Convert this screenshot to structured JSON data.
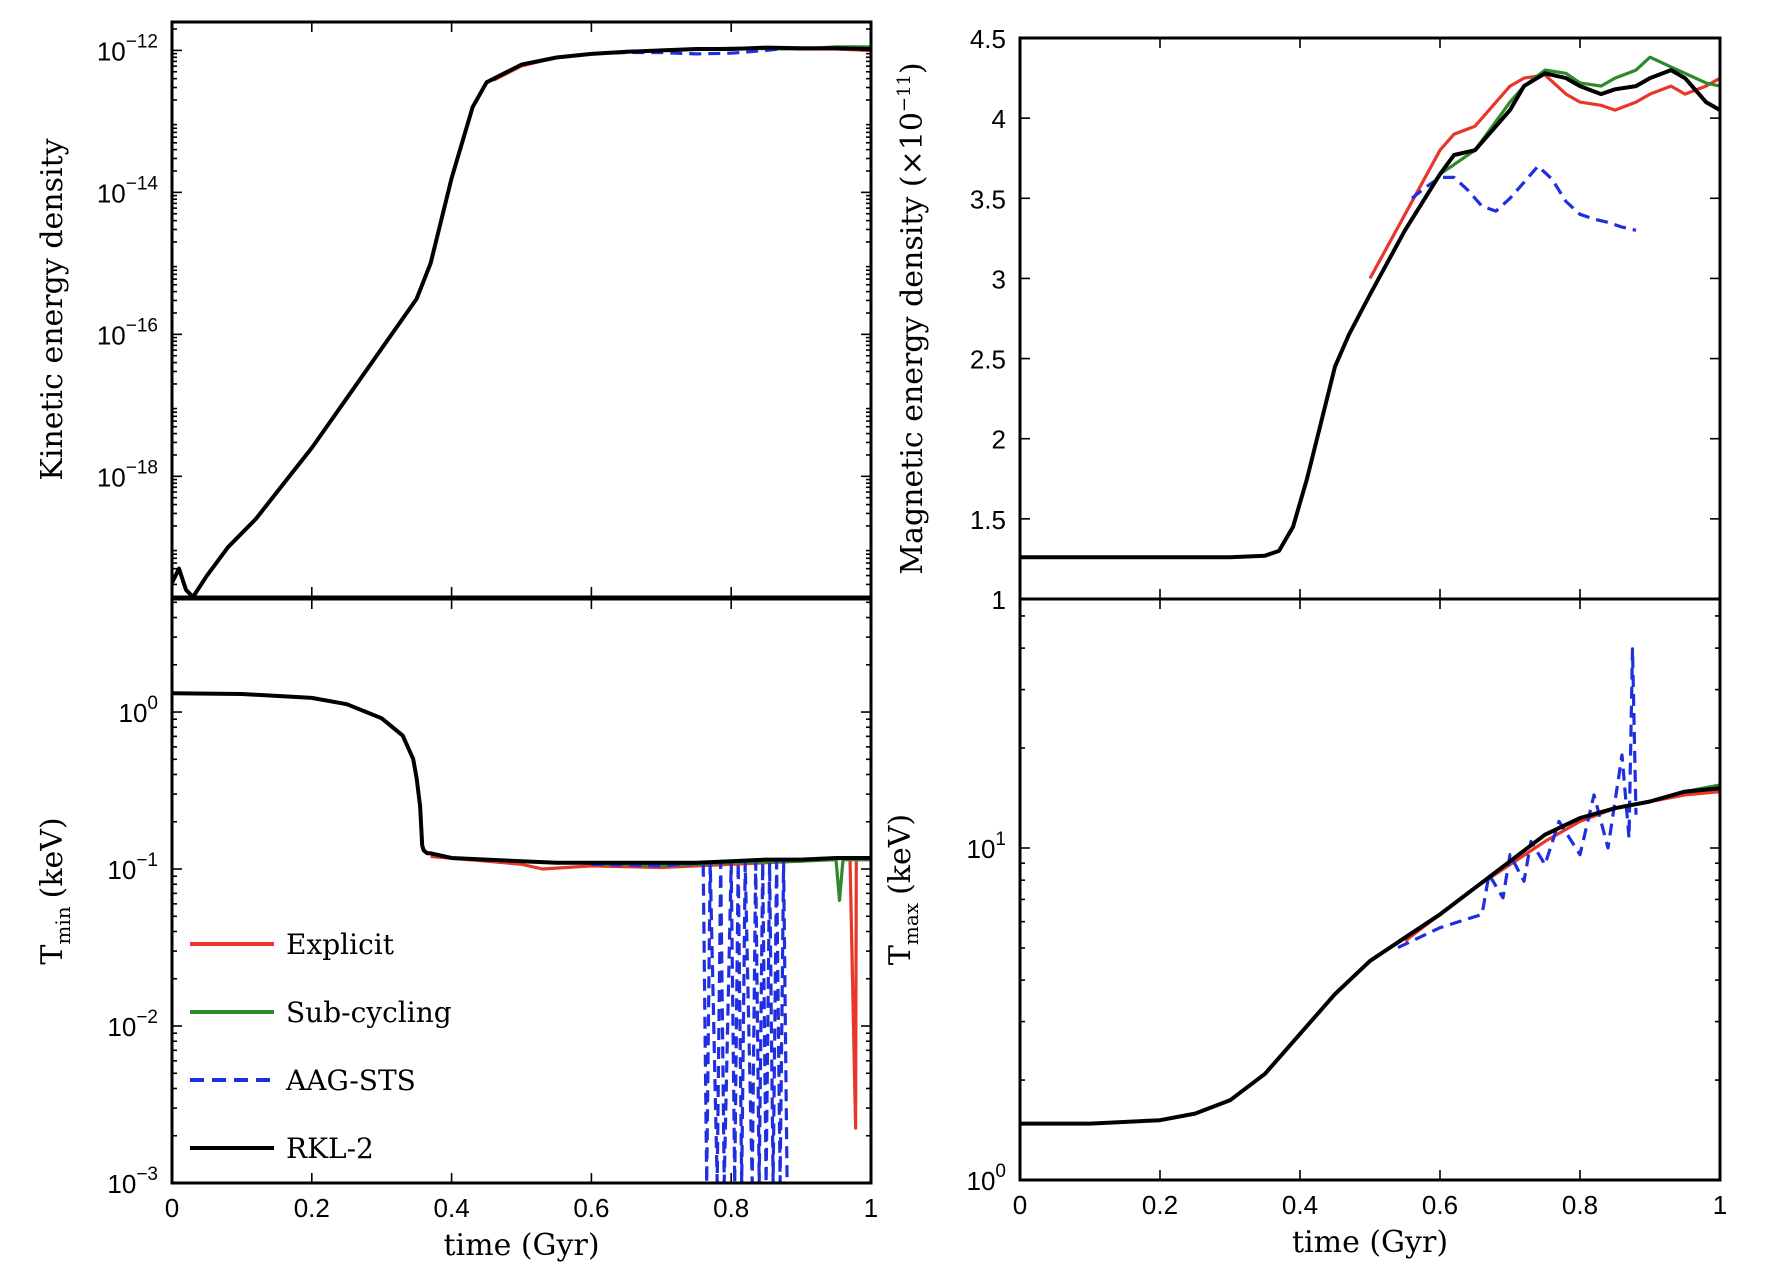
{
  "chart_data": [
    {
      "id": "ke",
      "type": "line",
      "ylabel": "Kinetic energy density",
      "xlabel": "",
      "xlim": [
        0,
        1
      ],
      "ylim_log10": [
        -19.7,
        -11.6
      ],
      "yscale": "log",
      "xticks": [],
      "yticks": [
        {
          "base": "10",
          "exp": "−12",
          "value": -12
        },
        {
          "base": "10",
          "exp": "−14",
          "value": -14
        },
        {
          "base": "10",
          "exp": "−16",
          "value": -16
        },
        {
          "base": "10",
          "exp": "−18",
          "value": -18
        }
      ],
      "series": [
        {
          "name": "Explicit",
          "color": "#e8362a",
          "dash": false,
          "x": [
            0.46,
            0.5,
            0.55,
            0.6,
            0.65,
            0.7,
            0.75,
            0.8,
            0.85,
            0.9,
            0.95,
            1.0
          ],
          "y": [
            -12.42,
            -12.22,
            -12.1,
            -12.05,
            -12.02,
            -12.0,
            -11.98,
            -11.97,
            -11.97,
            -11.98,
            -11.98,
            -12.0
          ]
        },
        {
          "name": "Sub-cycling",
          "color": "#2d8a2a",
          "dash": false,
          "x": [
            0.6,
            0.7,
            0.8,
            0.9,
            0.95,
            1.0
          ],
          "y": [
            -12.05,
            -12.0,
            -11.97,
            -11.98,
            -11.95,
            -11.95
          ]
        },
        {
          "name": "AAG-STS",
          "color": "#1f2fe0",
          "dash": true,
          "x": [
            0.55,
            0.6,
            0.65,
            0.7,
            0.75,
            0.8,
            0.85,
            0.88
          ],
          "y": [
            -12.1,
            -12.05,
            -12.03,
            -12.03,
            -12.05,
            -12.04,
            -12.0,
            -11.97
          ]
        },
        {
          "name": "RKL-2",
          "color": "#000000",
          "dash": false,
          "x": [
            0.0,
            0.01,
            0.02,
            0.03,
            0.05,
            0.08,
            0.12,
            0.16,
            0.2,
            0.25,
            0.3,
            0.35,
            0.37,
            0.4,
            0.43,
            0.45,
            0.48,
            0.5,
            0.55,
            0.6,
            0.65,
            0.7,
            0.75,
            0.8,
            0.85,
            0.9,
            0.95,
            1.0
          ],
          "y": [
            -19.5,
            -19.3,
            -19.6,
            -19.7,
            -19.4,
            -19.0,
            -18.6,
            -18.1,
            -17.6,
            -16.9,
            -16.2,
            -15.5,
            -15.0,
            -13.8,
            -12.8,
            -12.45,
            -12.3,
            -12.2,
            -12.1,
            -12.05,
            -12.02,
            -12.0,
            -11.98,
            -11.98,
            -11.96,
            -11.97,
            -11.97,
            -11.98
          ]
        }
      ]
    },
    {
      "id": "me",
      "type": "line",
      "ylabel": "Magnetic energy density (×10",
      "ylabel_exp": "−11",
      "ylabel_close": ")",
      "xlabel": "",
      "xlim": [
        0,
        1
      ],
      "ylim": [
        1,
        4.5
      ],
      "yscale": "linear",
      "xticks": [],
      "yticks": [
        {
          "label": "1",
          "value": 1
        },
        {
          "label": "1.5",
          "value": 1.5
        },
        {
          "label": "2",
          "value": 2
        },
        {
          "label": "2.5",
          "value": 2.5
        },
        {
          "label": "3",
          "value": 3
        },
        {
          "label": "3.5",
          "value": 3.5
        },
        {
          "label": "4",
          "value": 4
        },
        {
          "label": "4.5",
          "value": 4.5
        }
      ],
      "series": [
        {
          "name": "Explicit",
          "color": "#e8362a",
          "dash": false,
          "x": [
            0.5,
            0.55,
            0.6,
            0.62,
            0.65,
            0.7,
            0.72,
            0.75,
            0.78,
            0.8,
            0.83,
            0.85,
            0.88,
            0.9,
            0.93,
            0.95,
            0.98,
            1.0
          ],
          "y": [
            3.0,
            3.4,
            3.8,
            3.9,
            3.95,
            4.2,
            4.25,
            4.27,
            4.15,
            4.1,
            4.08,
            4.05,
            4.1,
            4.15,
            4.2,
            4.15,
            4.2,
            4.25
          ]
        },
        {
          "name": "Sub-cycling",
          "color": "#2d8a2a",
          "dash": false,
          "x": [
            0.55,
            0.6,
            0.65,
            0.7,
            0.72,
            0.75,
            0.78,
            0.8,
            0.83,
            0.85,
            0.88,
            0.9,
            0.93,
            0.95,
            0.98,
            1.0
          ],
          "y": [
            3.3,
            3.65,
            3.8,
            4.1,
            4.2,
            4.3,
            4.28,
            4.22,
            4.2,
            4.25,
            4.3,
            4.38,
            4.32,
            4.28,
            4.22,
            4.2
          ]
        },
        {
          "name": "AAG-STS",
          "color": "#1f2fe0",
          "dash": true,
          "x": [
            0.56,
            0.58,
            0.6,
            0.62,
            0.64,
            0.66,
            0.68,
            0.7,
            0.72,
            0.74,
            0.76,
            0.78,
            0.8,
            0.82,
            0.84,
            0.86,
            0.88
          ],
          "y": [
            3.5,
            3.57,
            3.63,
            3.63,
            3.55,
            3.45,
            3.42,
            3.5,
            3.6,
            3.7,
            3.62,
            3.48,
            3.4,
            3.37,
            3.35,
            3.32,
            3.3
          ]
        },
        {
          "name": "RKL-2",
          "color": "#000000",
          "dash": false,
          "x": [
            0.0,
            0.1,
            0.2,
            0.3,
            0.35,
            0.37,
            0.39,
            0.41,
            0.43,
            0.45,
            0.47,
            0.5,
            0.55,
            0.6,
            0.62,
            0.65,
            0.7,
            0.72,
            0.75,
            0.78,
            0.8,
            0.83,
            0.85,
            0.88,
            0.9,
            0.93,
            0.95,
            0.98,
            1.0
          ],
          "y": [
            1.26,
            1.26,
            1.26,
            1.26,
            1.27,
            1.3,
            1.45,
            1.75,
            2.1,
            2.45,
            2.65,
            2.9,
            3.3,
            3.65,
            3.77,
            3.8,
            4.05,
            4.2,
            4.28,
            4.25,
            4.2,
            4.15,
            4.18,
            4.2,
            4.25,
            4.3,
            4.25,
            4.1,
            4.05
          ]
        }
      ]
    },
    {
      "id": "tmin",
      "type": "line",
      "ylabel": "T",
      "ylabel_sub": "min",
      "ylabel_rest": "(keV)",
      "xlabel": "time (Gyr)",
      "xlim": [
        0,
        1
      ],
      "ylim_log10": [
        -3,
        0.72
      ],
      "yscale": "log",
      "xticks": [
        "0",
        "0.2",
        "0.4",
        "0.6",
        "0.8",
        "1"
      ],
      "yticks": [
        {
          "base": "10",
          "exp": "0",
          "value": 0
        },
        {
          "base": "10",
          "exp": "−1",
          "value": -1
        },
        {
          "base": "10",
          "exp": "−2",
          "value": -2
        },
        {
          "base": "10",
          "exp": "−3",
          "value": -3
        }
      ],
      "series": [
        {
          "name": "Explicit",
          "color": "#e8362a",
          "dash": false,
          "x": [
            0.37,
            0.45,
            0.5,
            0.53,
            0.6,
            0.7,
            0.8,
            0.9,
            0.97,
            0.978,
            0.979,
            0.98,
            1.0
          ],
          "y": [
            -0.92,
            -0.95,
            -0.97,
            -1.0,
            -0.98,
            -0.99,
            -0.97,
            -0.95,
            -0.93,
            -2.65,
            -0.93,
            -0.94,
            -0.94
          ]
        },
        {
          "name": "Sub-cycling",
          "color": "#2d8a2a",
          "dash": false,
          "x": [
            0.6,
            0.65,
            0.7,
            0.8,
            0.9,
            0.95,
            0.955,
            0.96,
            1.0
          ],
          "y": [
            -0.97,
            -0.97,
            -0.98,
            -0.96,
            -0.95,
            -0.94,
            -1.2,
            -0.94,
            -0.94
          ]
        },
        {
          "name": "AAG-STS",
          "color": "#1f2fe0",
          "dash": true,
          "x": [
            0.6,
            0.7,
            0.76,
            0.765,
            0.77,
            0.78,
            0.785,
            0.79,
            0.8,
            0.805,
            0.81,
            0.815,
            0.82,
            0.83,
            0.835,
            0.84,
            0.845,
            0.85,
            0.855,
            0.86,
            0.865,
            0.87,
            0.875,
            0.88
          ],
          "y": [
            -0.97,
            -0.98,
            -0.96,
            -3.0,
            -0.96,
            -3.0,
            -0.96,
            -3.0,
            -0.96,
            -3.0,
            -0.96,
            -3.0,
            -0.96,
            -3.0,
            -0.96,
            -3.0,
            -0.96,
            -3.0,
            -0.96,
            -3.0,
            -0.96,
            -3.0,
            -0.96,
            -3.0
          ]
        },
        {
          "name": "RKL-2",
          "color": "#000000",
          "dash": false,
          "x": [
            0.0,
            0.1,
            0.2,
            0.25,
            0.3,
            0.33,
            0.345,
            0.35,
            0.355,
            0.358,
            0.36,
            0.365,
            0.37,
            0.4,
            0.45,
            0.5,
            0.55,
            0.6,
            0.65,
            0.7,
            0.75,
            0.8,
            0.85,
            0.9,
            0.95,
            1.0
          ],
          "y": [
            0.12,
            0.115,
            0.09,
            0.05,
            -0.04,
            -0.15,
            -0.3,
            -0.42,
            -0.6,
            -0.85,
            -0.88,
            -0.9,
            -0.9,
            -0.93,
            -0.94,
            -0.95,
            -0.96,
            -0.96,
            -0.96,
            -0.96,
            -0.96,
            -0.95,
            -0.94,
            -0.94,
            -0.93,
            -0.93
          ]
        }
      ]
    },
    {
      "id": "tmax",
      "type": "line",
      "ylabel": "T",
      "ylabel_sub": "max",
      "ylabel_rest": "(keV)",
      "xlabel": "time (Gyr)",
      "xlim": [
        0,
        1
      ],
      "ylim_log10": [
        0,
        1.75
      ],
      "yscale": "log",
      "xticks": [
        "0",
        "0.2",
        "0.4",
        "0.6",
        "0.8",
        "1"
      ],
      "yticks": [
        {
          "base": "10",
          "exp": "0",
          "value": 0
        },
        {
          "base": "10",
          "exp": "1",
          "value": 1
        }
      ],
      "series": [
        {
          "name": "Explicit",
          "color": "#e8362a",
          "dash": false,
          "x": [
            0.55,
            0.6,
            0.65,
            0.7,
            0.75,
            0.8,
            0.85,
            0.9,
            0.95,
            1.0
          ],
          "y": [
            0.72,
            0.8,
            0.88,
            0.95,
            1.02,
            1.08,
            1.12,
            1.14,
            1.16,
            1.17
          ]
        },
        {
          "name": "Sub-cycling",
          "color": "#2d8a2a",
          "dash": false,
          "x": [
            0.85,
            0.9,
            0.95,
            1.0
          ],
          "y": [
            1.12,
            1.14,
            1.17,
            1.19
          ]
        },
        {
          "name": "AAG-STS",
          "color": "#1f2fe0",
          "dash": true,
          "x": [
            0.54,
            0.6,
            0.66,
            0.67,
            0.69,
            0.7,
            0.72,
            0.73,
            0.75,
            0.77,
            0.8,
            0.82,
            0.84,
            0.86,
            0.87,
            0.875,
            0.88
          ],
          "y": [
            0.7,
            0.76,
            0.8,
            0.92,
            0.85,
            0.98,
            0.9,
            1.02,
            0.95,
            1.08,
            0.98,
            1.16,
            1.0,
            1.28,
            1.03,
            1.6,
            1.1
          ]
        },
        {
          "name": "RKL-2",
          "color": "#000000",
          "dash": false,
          "x": [
            0.0,
            0.1,
            0.2,
            0.25,
            0.3,
            0.35,
            0.4,
            0.45,
            0.5,
            0.55,
            0.6,
            0.65,
            0.7,
            0.75,
            0.8,
            0.85,
            0.9,
            0.95,
            1.0
          ],
          "y": [
            0.17,
            0.17,
            0.18,
            0.2,
            0.24,
            0.32,
            0.44,
            0.56,
            0.66,
            0.73,
            0.8,
            0.88,
            0.96,
            1.04,
            1.09,
            1.12,
            1.14,
            1.17,
            1.18
          ]
        }
      ]
    }
  ],
  "legend": [
    {
      "label": "Explicit",
      "color": "#e8362a",
      "dash": false
    },
    {
      "label": "Sub-cycling",
      "color": "#2d8a2a",
      "dash": false
    },
    {
      "label": "AAG-STS",
      "color": "#1f2fe0",
      "dash": true
    },
    {
      "label": "RKL-2",
      "color": "#000000",
      "dash": false
    }
  ]
}
